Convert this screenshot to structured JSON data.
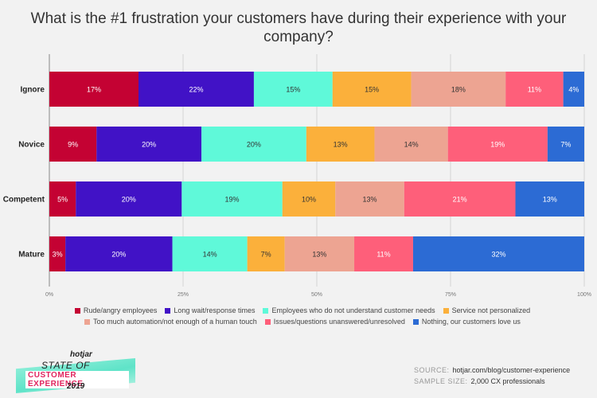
{
  "title": "What is the #1 frustration your customers have during their experience with your company?",
  "chart_data": {
    "type": "bar",
    "orientation": "horizontal",
    "stacked": true,
    "categories": [
      "Ignore",
      "Novice",
      "Competent",
      "Mature"
    ],
    "series": [
      {
        "name": "Rude/angry employees",
        "color": "#c40233",
        "values": [
          17,
          9,
          5,
          3
        ]
      },
      {
        "name": "Long wait/response times",
        "color": "#4112c6",
        "values": [
          22,
          20,
          20,
          20
        ]
      },
      {
        "name": "Employees who do not understand customer needs",
        "color": "#5ff9d9",
        "values": [
          15,
          20,
          19,
          14
        ]
      },
      {
        "name": "Service not personalized",
        "color": "#fbb03b",
        "values": [
          15,
          13,
          10,
          7
        ]
      },
      {
        "name": "Too much automation/not enough of a human touch",
        "color": "#eda492",
        "values": [
          18,
          14,
          13,
          13
        ]
      },
      {
        "name": "Issues/questions unanswered/unresolved",
        "color": "#fe5f7a",
        "values": [
          11,
          19,
          21,
          11
        ]
      },
      {
        "name": "Nothing, our customers love us",
        "color": "#2c6bd4",
        "values": [
          4,
          7,
          13,
          32
        ]
      }
    ],
    "xaxis": {
      "ticks": [
        "0%",
        "25%",
        "50%",
        "75%",
        "100%"
      ],
      "range": [
        0,
        100
      ]
    },
    "grid": true,
    "legend": "bottom"
  },
  "branding": {
    "brand": "hotjar",
    "line1": "STATE OF",
    "line2": "CUSTOMER EXPERIENCE",
    "line3": "2019"
  },
  "source": {
    "source_label": "SOURCE:",
    "source_value": "hotjar.com/blog/customer-experience",
    "sample_label": "SAMPLE SIZE:",
    "sample_value": "2,000 CX professionals"
  }
}
